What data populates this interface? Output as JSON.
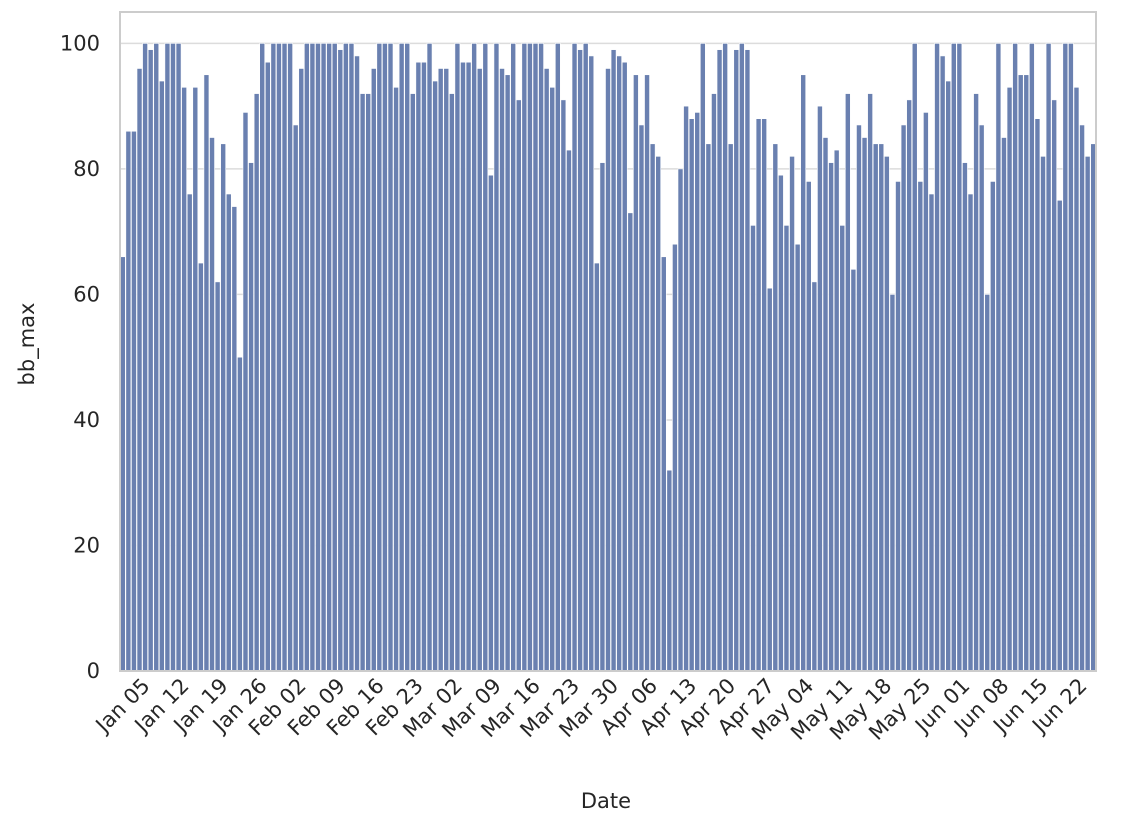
{
  "chart_data": {
    "type": "bar",
    "x_label": "Date",
    "y_label": "bb_max",
    "categories": [
      null,
      null,
      null,
      null,
      "Jan 05",
      null,
      null,
      null,
      null,
      null,
      null,
      "Jan 12",
      null,
      null,
      null,
      null,
      null,
      null,
      "Jan 19",
      null,
      null,
      null,
      null,
      null,
      null,
      "Jan 26",
      null,
      null,
      null,
      null,
      null,
      null,
      "Feb 02",
      null,
      null,
      null,
      null,
      null,
      null,
      "Feb 09",
      null,
      null,
      null,
      null,
      null,
      null,
      "Feb 16",
      null,
      null,
      null,
      null,
      null,
      null,
      "Feb 23",
      null,
      null,
      null,
      null,
      null,
      null,
      "Mar 02",
      null,
      null,
      null,
      null,
      null,
      null,
      "Mar 09",
      null,
      null,
      null,
      null,
      null,
      null,
      "Mar 16",
      null,
      null,
      null,
      null,
      null,
      null,
      "Mar 23",
      null,
      null,
      null,
      null,
      null,
      null,
      "Mar 30",
      null,
      null,
      null,
      null,
      null,
      null,
      "Apr 06",
      null,
      null,
      null,
      null,
      null,
      null,
      "Apr 13",
      null,
      null,
      null,
      null,
      null,
      null,
      "Apr 20",
      null,
      null,
      null,
      null,
      null,
      null,
      "Apr 27",
      null,
      null,
      null,
      null,
      null,
      null,
      "May 04",
      null,
      null,
      null,
      null,
      null,
      null,
      "May 11",
      null,
      null,
      null,
      null,
      null,
      null,
      "May 18",
      null,
      null,
      null,
      null,
      null,
      null,
      "May 25",
      null,
      null,
      null,
      null,
      null,
      null,
      "Jun 01",
      null,
      null,
      null,
      null,
      null,
      null,
      "Jun 08",
      null,
      null,
      null,
      null,
      null,
      null,
      "Jun 15",
      null,
      null,
      null,
      null,
      null,
      null,
      "Jun 22",
      null,
      null
    ],
    "values": [
      66,
      86,
      86,
      96,
      100,
      99,
      100,
      94,
      100,
      100,
      100,
      93,
      76,
      93,
      65,
      95,
      85,
      62,
      84,
      76,
      74,
      50,
      89,
      81,
      92,
      100,
      97,
      100,
      100,
      100,
      100,
      87,
      96,
      100,
      100,
      100,
      100,
      100,
      100,
      99,
      100,
      100,
      98,
      92,
      92,
      96,
      100,
      100,
      100,
      93,
      100,
      100,
      92,
      97,
      97,
      100,
      94,
      96,
      96,
      92,
      100,
      97,
      97,
      100,
      96,
      100,
      79,
      100,
      96,
      95,
      100,
      91,
      100,
      100,
      100,
      100,
      96,
      93,
      100,
      91,
      83,
      100,
      99,
      100,
      98,
      65,
      81,
      96,
      99,
      98,
      97,
      73,
      95,
      87,
      95,
      84,
      82,
      66,
      32,
      68,
      80,
      90,
      88,
      89,
      100,
      84,
      92,
      99,
      100,
      84,
      99,
      100,
      99,
      71,
      88,
      88,
      61,
      84,
      79,
      71,
      82,
      68,
      95,
      78,
      62,
      90,
      85,
      81,
      83,
      71,
      92,
      64,
      87,
      85,
      92,
      84,
      84,
      82,
      60,
      78,
      87,
      91,
      100,
      78,
      89,
      76,
      100,
      98,
      94,
      100,
      100,
      81,
      76,
      92,
      87,
      60,
      78,
      100,
      85,
      93,
      100,
      95,
      95,
      100,
      88,
      82,
      100,
      91,
      75,
      100,
      100,
      93,
      87,
      82,
      84
    ],
    "color": "#6a80b0",
    "ylim": [
      0,
      105
    ],
    "yticks": [
      0,
      20,
      40,
      60,
      80,
      100
    ],
    "grid": true
  }
}
